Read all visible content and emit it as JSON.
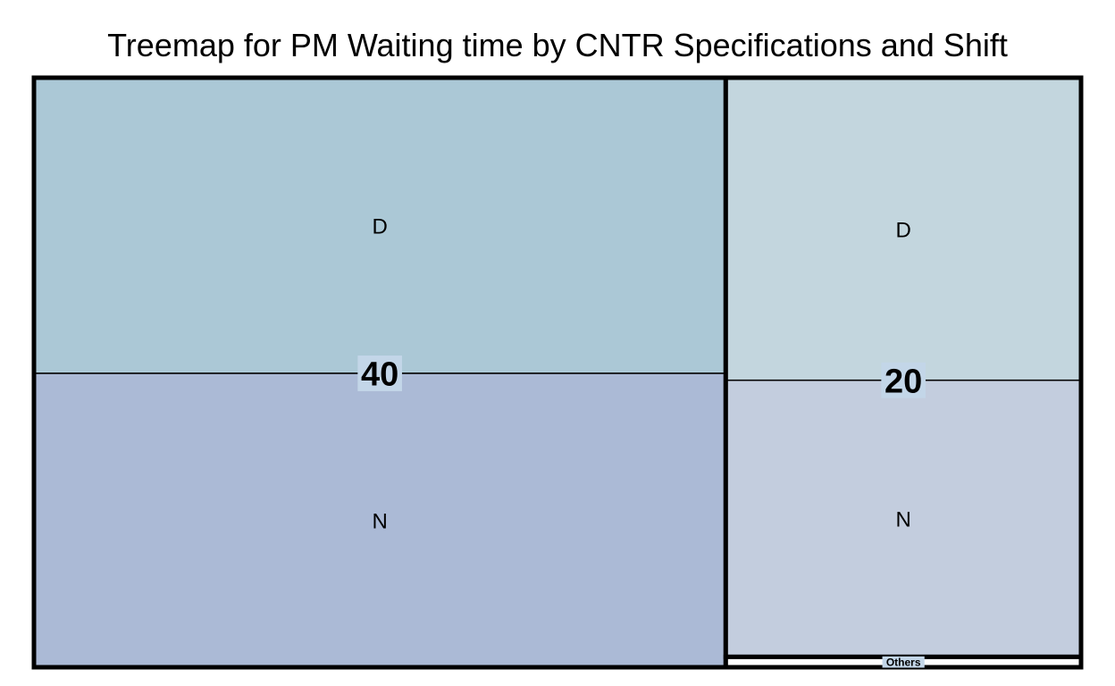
{
  "chart_data": {
    "type": "treemap",
    "title": "Treemap for PM Waiting time by CNTR Specifications and Shift",
    "groups": [
      {
        "label": "40",
        "children": [
          {
            "label": "D",
            "value": 33.3,
            "color": "#abc8d6"
          },
          {
            "label": "N",
            "value": 33.1,
            "color": "#abbad6"
          }
        ]
      },
      {
        "label": "20",
        "children": [
          {
            "label": "D",
            "value": 17.5,
            "color": "#c3d6de"
          },
          {
            "label": "N",
            "value": 16.0,
            "color": "#c3cdde"
          }
        ]
      },
      {
        "label": "Others",
        "children": [
          {
            "label": "",
            "value": 0.6,
            "color": "#ffffff"
          }
        ]
      }
    ],
    "label_bg_color": "#c3d6e8"
  }
}
